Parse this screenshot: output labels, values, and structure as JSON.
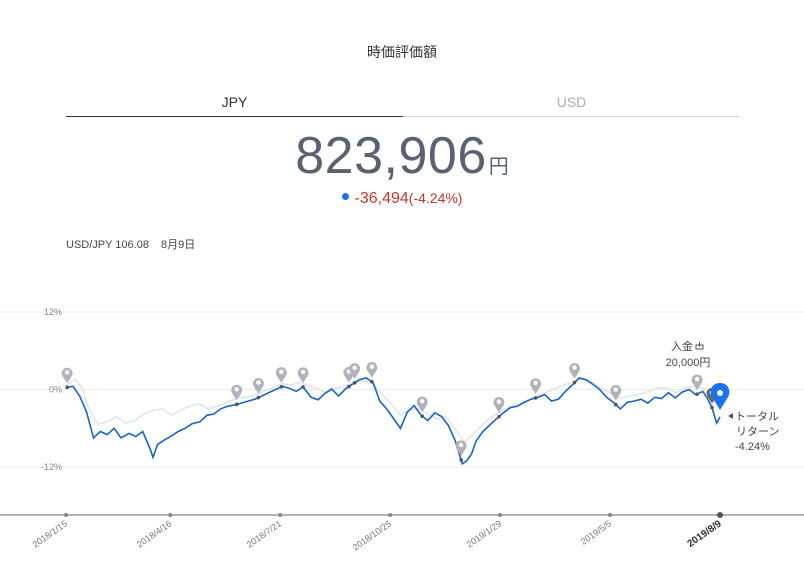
{
  "header": {
    "title": "時価評価額"
  },
  "tabs": [
    {
      "label": "JPY",
      "active": true
    },
    {
      "label": "USD",
      "active": false
    }
  ],
  "valuation": {
    "amount": "823,906",
    "unit": "円",
    "change": "-36,494",
    "change_pct": "(-4.24%)"
  },
  "fx": {
    "rate": "USD/JPY 106.08",
    "date": "8月9日"
  },
  "colors": {
    "line": "#1a63c7",
    "benchmark": "#dfe3ea",
    "marker": "#b0b4ba",
    "current_pin": "#1a73e8",
    "loss": "#c0392b"
  },
  "annotations": {
    "deposit_label": "入金",
    "deposit_icon": "deposit-icon",
    "deposit_amount": "20,000円",
    "total_return_label_1": "トータル",
    "total_return_label_2": "リターン",
    "total_return_value": "-4.24%"
  },
  "chart_data": {
    "type": "line",
    "y_ticks": [
      "12%",
      "0%",
      "-12%"
    ],
    "ylim": [
      -12,
      12
    ],
    "x_ticks": [
      "2018/1/15",
      "2018/4/16",
      "2018/7/21",
      "2018/10/25",
      "2019/1/29",
      "2019/5/5",
      "2019/8/9"
    ],
    "x_ticks_days": [
      0,
      91,
      187,
      283,
      379,
      475,
      571
    ],
    "series": [
      {
        "points": [
          [
            0,
            0.3
          ],
          [
            6,
            0.5
          ],
          [
            12,
            -1.0
          ],
          [
            18,
            -3.5
          ],
          [
            24,
            -7.5
          ],
          [
            30,
            -6.5
          ],
          [
            36,
            -7.0
          ],
          [
            42,
            -6.0
          ],
          [
            48,
            -7.5
          ],
          [
            55,
            -6.8
          ],
          [
            61,
            -7.3
          ],
          [
            67,
            -6.5
          ],
          [
            73,
            -9.0
          ],
          [
            76,
            -10.5
          ],
          [
            80,
            -8.5
          ],
          [
            86,
            -7.8
          ],
          [
            92,
            -7.2
          ],
          [
            98,
            -6.5
          ],
          [
            104,
            -6.0
          ],
          [
            110,
            -5.3
          ],
          [
            117,
            -5.0
          ],
          [
            123,
            -4.0
          ],
          [
            129,
            -3.8
          ],
          [
            135,
            -3.0
          ],
          [
            141,
            -2.6
          ],
          [
            147,
            -2.4
          ],
          [
            153,
            -2.1
          ],
          [
            159,
            -1.8
          ],
          [
            165,
            -1.5
          ],
          [
            171,
            -1.0
          ],
          [
            177,
            -0.5
          ],
          [
            183,
            0.0
          ],
          [
            189,
            0.5
          ],
          [
            195,
            0.2
          ],
          [
            201,
            -0.3
          ],
          [
            207,
            0.4
          ],
          [
            214,
            -1.2
          ],
          [
            220,
            -1.6
          ],
          [
            226,
            -0.6
          ],
          [
            232,
            0.1
          ],
          [
            238,
            -1.0
          ],
          [
            244,
            0.1
          ],
          [
            250,
            0.8
          ],
          [
            256,
            1.5
          ],
          [
            262,
            1.8
          ],
          [
            268,
            1.1
          ],
          [
            274,
            -1.8
          ],
          [
            280,
            -3.0
          ],
          [
            286,
            -4.5
          ],
          [
            292,
            -6.0
          ],
          [
            298,
            -3.5
          ],
          [
            304,
            -2.5
          ],
          [
            310,
            -4.0
          ],
          [
            316,
            -4.8
          ],
          [
            322,
            -3.6
          ],
          [
            328,
            -4.2
          ],
          [
            334,
            -5.6
          ],
          [
            340,
            -8.0
          ],
          [
            346,
            -11.5
          ],
          [
            350,
            -11.0
          ],
          [
            354,
            -10.0
          ],
          [
            358,
            -8.0
          ],
          [
            364,
            -6.5
          ],
          [
            370,
            -5.5
          ],
          [
            376,
            -4.5
          ],
          [
            382,
            -3.6
          ],
          [
            388,
            -2.8
          ],
          [
            394,
            -2.6
          ],
          [
            400,
            -2.0
          ],
          [
            406,
            -1.5
          ],
          [
            412,
            -1.2
          ],
          [
            418,
            -0.8
          ],
          [
            424,
            -1.8
          ],
          [
            430,
            -1.5
          ],
          [
            436,
            -0.3
          ],
          [
            442,
            0.7
          ],
          [
            448,
            1.8
          ],
          [
            454,
            1.5
          ],
          [
            460,
            0.8
          ],
          [
            466,
            0.0
          ],
          [
            472,
            -1.2
          ],
          [
            478,
            -2.0
          ],
          [
            484,
            -3.0
          ],
          [
            490,
            -2.0
          ],
          [
            496,
            -1.8
          ],
          [
            502,
            -1.5
          ],
          [
            508,
            -2.1
          ],
          [
            514,
            -1.2
          ],
          [
            520,
            -1.4
          ],
          [
            526,
            -0.5
          ],
          [
            532,
            -1.3
          ],
          [
            538,
            -0.4
          ],
          [
            544,
            0.0
          ],
          [
            550,
            -0.8
          ],
          [
            556,
            -0.3
          ],
          [
            560,
            -1.4
          ],
          [
            564,
            -2.8
          ],
          [
            568,
            -5.2
          ],
          [
            571,
            -4.24
          ]
        ]
      },
      {
        "points": [
          [
            0,
            0.6
          ],
          [
            8,
            1.6
          ],
          [
            14,
            0.2
          ],
          [
            20,
            -3.0
          ],
          [
            28,
            -5.4
          ],
          [
            36,
            -5.0
          ],
          [
            44,
            -4.2
          ],
          [
            52,
            -5.2
          ],
          [
            60,
            -4.8
          ],
          [
            68,
            -3.8
          ],
          [
            76,
            -3.2
          ],
          [
            84,
            -3.0
          ],
          [
            92,
            -4.0
          ],
          [
            100,
            -3.2
          ],
          [
            108,
            -2.6
          ],
          [
            116,
            -2.2
          ],
          [
            124,
            -3.0
          ],
          [
            132,
            -2.6
          ],
          [
            140,
            -2.0
          ],
          [
            148,
            -1.4
          ],
          [
            156,
            -1.2
          ],
          [
            164,
            -0.9
          ],
          [
            172,
            -0.3
          ],
          [
            180,
            0.2
          ],
          [
            188,
            0.9
          ],
          [
            196,
            0.7
          ],
          [
            204,
            1.1
          ],
          [
            212,
            0.6
          ],
          [
            220,
            0.1
          ],
          [
            228,
            -0.5
          ],
          [
            236,
            0.2
          ],
          [
            244,
            0.6
          ],
          [
            252,
            1.1
          ],
          [
            260,
            1.3
          ],
          [
            268,
            0.9
          ],
          [
            276,
            -0.8
          ],
          [
            284,
            -2.2
          ],
          [
            292,
            -4.0
          ],
          [
            300,
            -3.2
          ],
          [
            308,
            -3.0
          ],
          [
            316,
            -3.8
          ],
          [
            324,
            -4.6
          ],
          [
            332,
            -4.2
          ],
          [
            340,
            -6.2
          ],
          [
            348,
            -8.2
          ],
          [
            356,
            -6.8
          ],
          [
            364,
            -5.4
          ],
          [
            372,
            -4.2
          ],
          [
            380,
            -3.4
          ],
          [
            388,
            -2.6
          ],
          [
            396,
            -2.2
          ],
          [
            404,
            -1.6
          ],
          [
            412,
            -1.0
          ],
          [
            420,
            -0.4
          ],
          [
            428,
            0.2
          ],
          [
            436,
            0.8
          ],
          [
            444,
            1.3
          ],
          [
            452,
            1.6
          ],
          [
            460,
            1.1
          ],
          [
            468,
            0.2
          ],
          [
            476,
            -0.6
          ],
          [
            484,
            -1.4
          ],
          [
            492,
            -1.0
          ],
          [
            500,
            -0.8
          ],
          [
            508,
            -0.3
          ],
          [
            516,
            0.2
          ],
          [
            524,
            0.3
          ],
          [
            532,
            -0.5
          ],
          [
            540,
            0.2
          ],
          [
            548,
            0.5
          ],
          [
            556,
            0.2
          ],
          [
            564,
            -0.2
          ],
          [
            571,
            0.0
          ]
        ]
      }
    ],
    "markers_days": [
      1,
      149,
      168,
      188,
      207,
      247,
      252,
      267,
      311,
      345,
      378,
      410,
      444,
      480,
      551
    ]
  }
}
